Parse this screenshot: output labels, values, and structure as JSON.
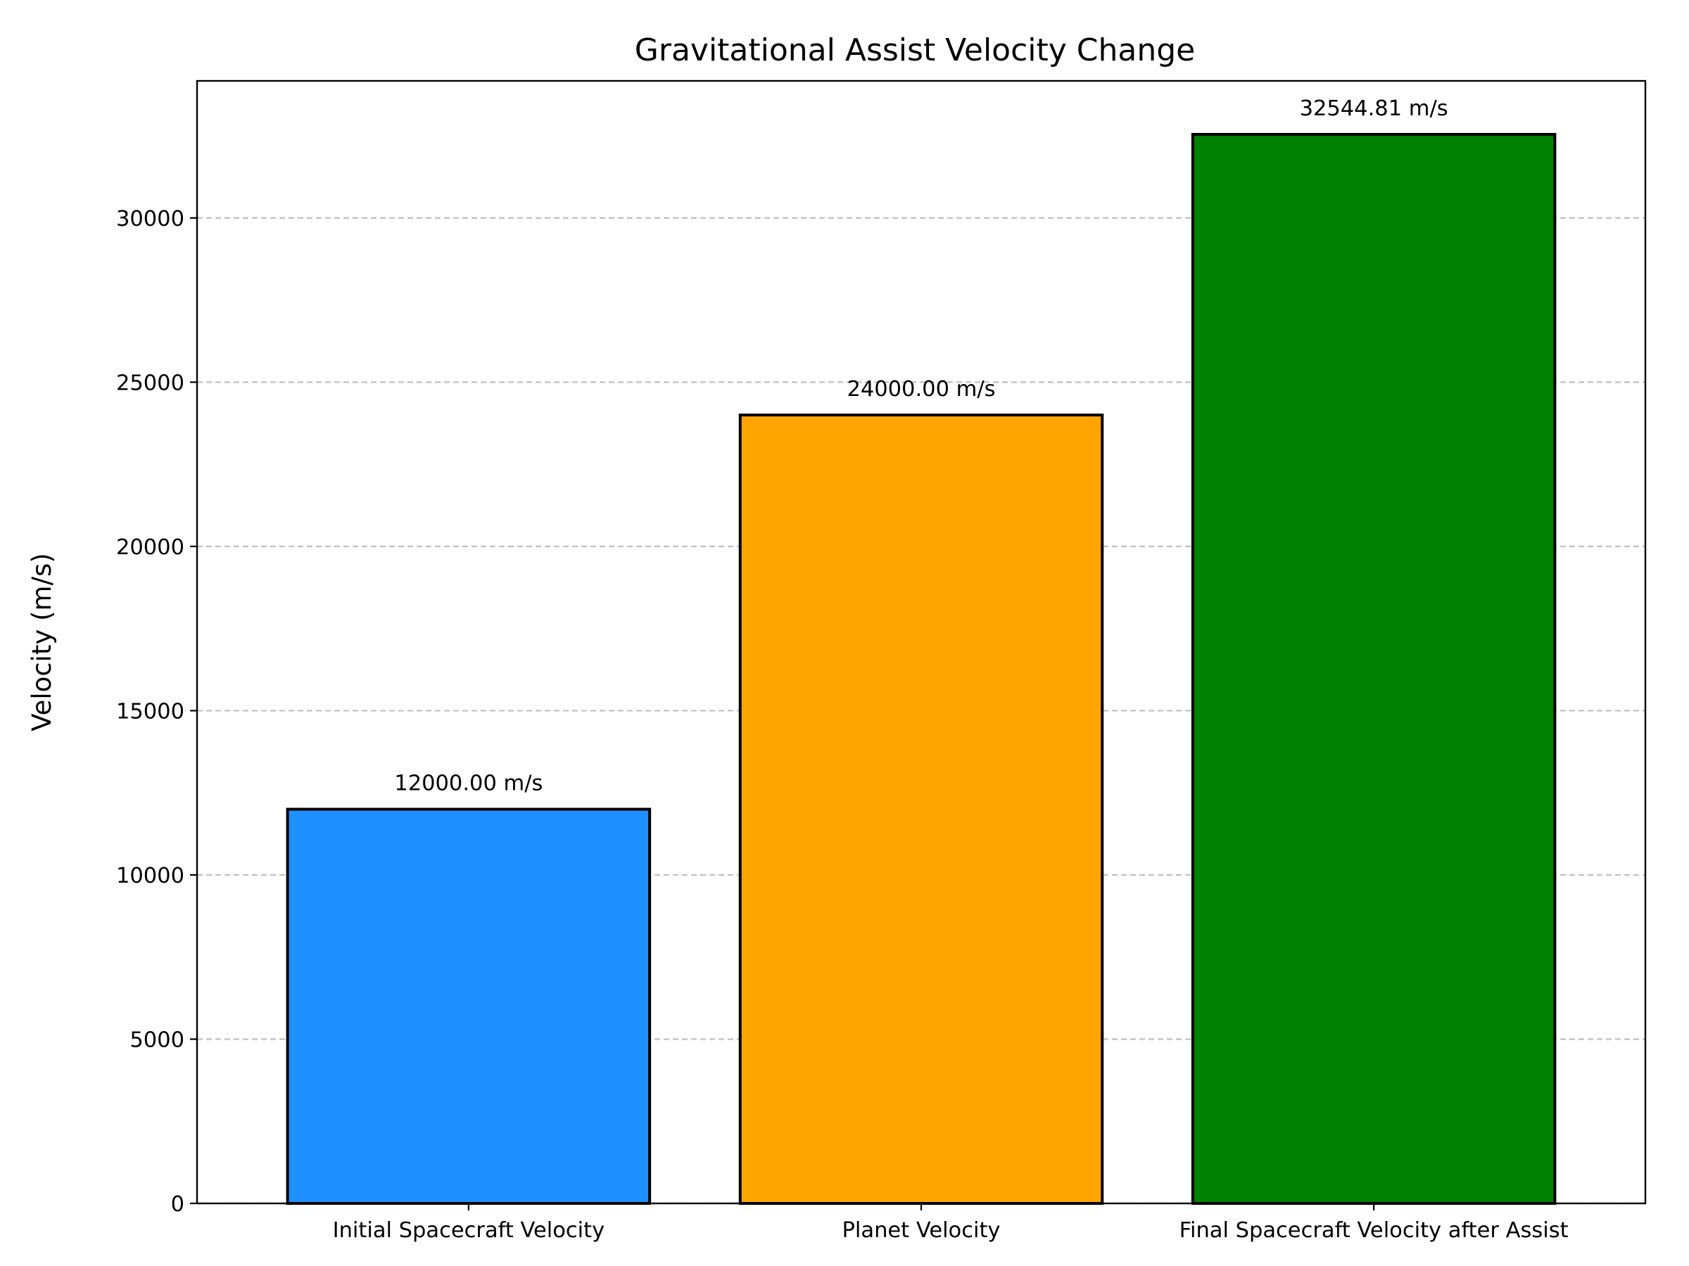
{
  "chart_data": {
    "type": "bar",
    "title": "Gravitational Assist Velocity Change",
    "xlabel": "",
    "ylabel": "Velocity (m/s)",
    "ylim": [
      0,
      34172
    ],
    "grid": "y-dashed",
    "categories": [
      "Initial Spacecraft Velocity",
      "Planet Velocity",
      "Final Spacecraft Velocity after Assist"
    ],
    "values": [
      12000.0,
      24000.0,
      32544.81
    ],
    "value_labels": [
      "12000.00 m/s",
      "24000.00 m/s",
      "32544.81 m/s"
    ],
    "colors": [
      "#1e90ff",
      "#ffa500",
      "#008000"
    ],
    "yticks": [
      0,
      5000,
      10000,
      15000,
      20000,
      25000,
      30000
    ],
    "ytick_labels": [
      "0",
      "5000",
      "10000",
      "15000",
      "20000",
      "25000",
      "30000"
    ]
  }
}
